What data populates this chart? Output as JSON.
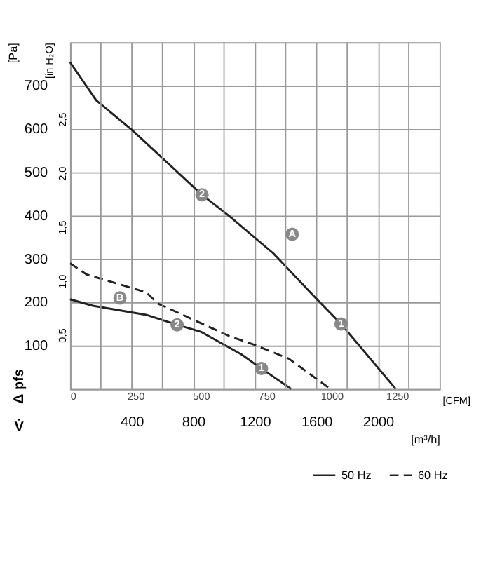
{
  "chart_data": {
    "type": "line",
    "xlabel": "[m³/h]",
    "ylabel": "[Pa]",
    "y2label": "[in H₂O]",
    "x2label": "[CFM]",
    "xlim": [
      0,
      2400
    ],
    "ylim": [
      0,
      800
    ],
    "y2lim": [
      0,
      3.2117
    ],
    "x2lim": [
      0,
      1412.6
    ],
    "xticks": [
      {
        "value": 200,
        "label": null
      },
      400,
      {
        "value": 600,
        "label": null
      },
      800,
      {
        "value": 1000,
        "label": null
      },
      1200,
      {
        "value": 1400,
        "label": null
      },
      1600,
      {
        "value": 1800,
        "label": null
      },
      2000,
      {
        "value": 2200,
        "label": null
      }
    ],
    "yticks": [
      100,
      200,
      300,
      400,
      500,
      600,
      700
    ],
    "y2ticks": [
      {
        "value": 0.5,
        "label": "0,5"
      },
      {
        "value": 1.0,
        "label": "1,0"
      },
      {
        "value": 1.5,
        "label": "1,5"
      },
      {
        "value": 2.0,
        "label": "2,0"
      },
      {
        "value": 2.5,
        "label": "2,5"
      }
    ],
    "x2ticks": [
      0,
      250,
      500,
      750,
      1000,
      1250
    ],
    "grid": true,
    "legend": "bottom right",
    "series": [
      {
        "name": "50 Hz",
        "color": "#222222",
        "line_style": "solid",
        "x": [
          0,
          170,
          401,
          857,
          1034,
          1320,
          1590,
          1760,
          2115
        ],
        "values": [
          754,
          666,
          598,
          448,
          399,
          313,
          212,
          150,
          0
        ]
      },
      {
        "name": "60 Hz",
        "color": "#222222",
        "line_style": "dashed",
        "x": [
          0,
          108,
          494,
          571,
          1034,
          1204,
          1420,
          1690
        ],
        "values": [
          290,
          264,
          223,
          197,
          122,
          101,
          70,
          0
        ]
      },
      {
        "color": "#222222",
        "line_style": "solid",
        "x": [
          0,
          147,
          494,
          695,
          849,
          1112,
          1243,
          1436
        ],
        "values": [
          207,
          192,
          171,
          148,
          132,
          80,
          47,
          0
        ]
      }
    ],
    "annotations": [
      {
        "text": "2",
        "x": 857,
        "y": 448
      },
      {
        "text": "1",
        "x": 1760,
        "y": 150
      },
      {
        "text": "2",
        "x": 695,
        "y": 148
      },
      {
        "text": "1",
        "x": 1243,
        "y": 47
      },
      {
        "text": "A",
        "x": 1443,
        "y": 357
      },
      {
        "text": "B",
        "x": 324,
        "y": 210
      },
      "Δ pfs",
      "V̇"
    ]
  }
}
